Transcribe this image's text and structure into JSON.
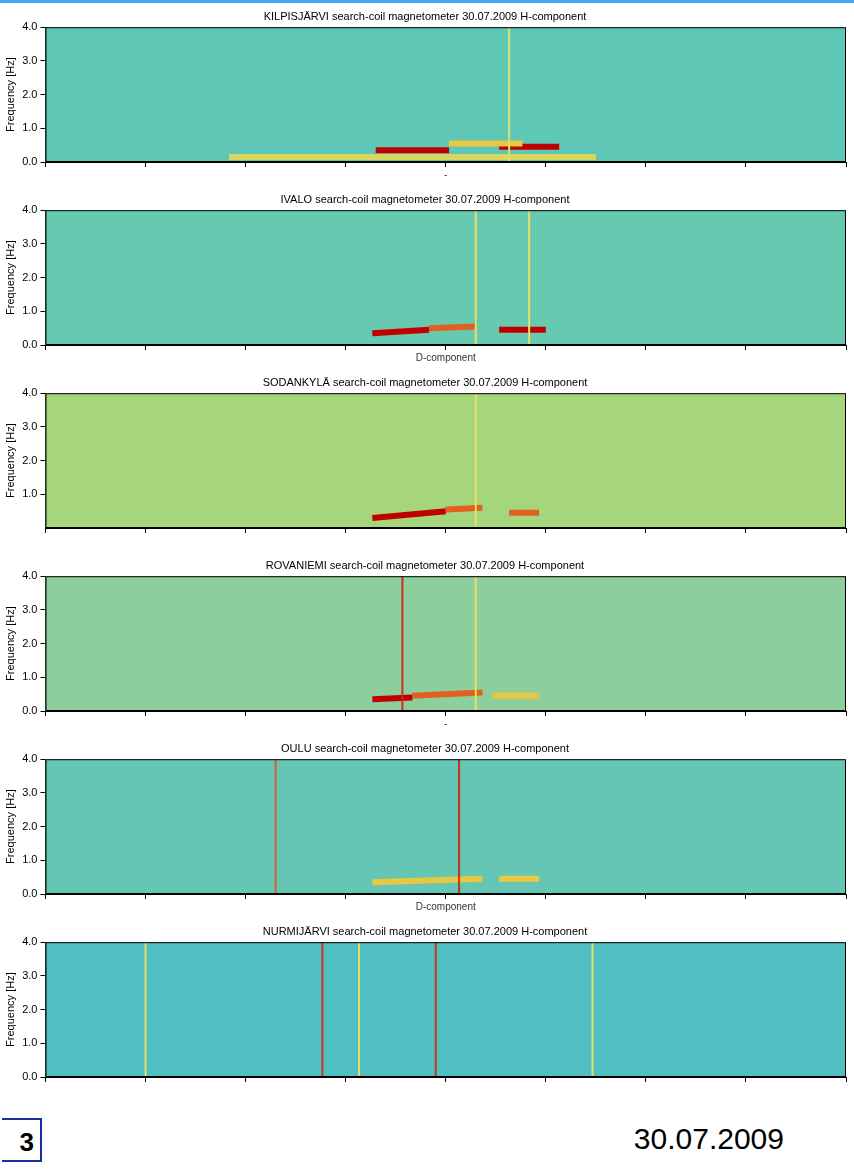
{
  "chart_data": [
    {
      "type": "line",
      "title": "KILPISJÄRVI search-coil magnetometer 30.07.2009 H-component",
      "y_label": "Frequency [Hz]",
      "xlim": [
        0,
        24
      ],
      "xticks": [
        0,
        3,
        6,
        9,
        12,
        15,
        18,
        21,
        24
      ],
      "ylim": [
        0,
        4
      ],
      "yticks": [
        {
          "value": 0,
          "label": "0.0"
        },
        {
          "value": 1,
          "label": "1.0"
        },
        {
          "value": 2,
          "label": "2.0"
        },
        {
          "value": 3,
          "label": "3.0"
        },
        {
          "value": 4,
          "label": "4.0"
        }
      ],
      "tick_labels": "y",
      "footnote": "-",
      "bands": [
        {
          "color": "#c00000",
          "x": [
            9.9,
            12.1
          ],
          "values": [
            0.35,
            0.35
          ]
        },
        {
          "color": "#e8c840",
          "x": [
            12.1,
            14.3
          ],
          "values": [
            0.55,
            0.55
          ]
        },
        {
          "color": "#c00000",
          "x": [
            13.6,
            15.4
          ],
          "values": [
            0.45,
            0.45
          ]
        },
        {
          "color": "#d8d860",
          "x": [
            5.5,
            16.5
          ],
          "values": [
            0.15,
            0.15
          ]
        }
      ],
      "spikes": [
        {
          "color": "#d8e070",
          "x": [
            13.9,
            13.9
          ],
          "values": [
            0,
            4
          ]
        }
      ]
    },
    {
      "type": "line",
      "title": "IVALO search-coil magnetometer 30.07.2009 H-component",
      "y_label": "Frequency [Hz]",
      "xlim": [
        0,
        24
      ],
      "xticks": [
        0,
        3,
        6,
        9,
        12,
        15,
        18,
        21,
        24
      ],
      "ylim": [
        0,
        4
      ],
      "yticks": [
        {
          "value": 0,
          "label": "0.0"
        },
        {
          "value": 1,
          "label": "1.0"
        },
        {
          "value": 2,
          "label": "2.0"
        },
        {
          "value": 3,
          "label": "3.0"
        },
        {
          "value": 4,
          "label": "4.0"
        }
      ],
      "tick_labels": "y",
      "footnote": "D-component",
      "bands": [
        {
          "color": "#c00000",
          "x": [
            9.8,
            11.5
          ],
          "values": [
            0.35,
            0.45
          ]
        },
        {
          "color": "#e06020",
          "x": [
            11.5,
            12.9
          ],
          "values": [
            0.5,
            0.55
          ]
        },
        {
          "color": "#c00000",
          "x": [
            13.6,
            15.0
          ],
          "values": [
            0.45,
            0.45
          ]
        }
      ],
      "spikes": [
        {
          "color": "#e8e060",
          "x": [
            12.9,
            12.9
          ],
          "values": [
            0,
            4
          ]
        },
        {
          "color": "#e8e060",
          "x": [
            14.5,
            14.5
          ],
          "values": [
            0,
            4
          ]
        }
      ]
    },
    {
      "type": "line",
      "title": "SODANKYLÄ search-coil magnetometer 30.07.2009 H-component",
      "y_label": "Frequency [Hz]",
      "xlim": [
        0,
        24
      ],
      "xticks": [
        0,
        3,
        6,
        9,
        12,
        15,
        18,
        21,
        24
      ],
      "ylim": [
        0,
        4
      ],
      "yticks": [
        {
          "value": 1,
          "label": "1.0"
        },
        {
          "value": 2,
          "label": "2.0"
        },
        {
          "value": 3,
          "label": "3.0"
        },
        {
          "value": 4,
          "label": "4.0"
        }
      ],
      "tick_labels": "y",
      "bands": [
        {
          "color": "#c00000",
          "x": [
            9.8,
            12.0
          ],
          "values": [
            0.3,
            0.5
          ]
        },
        {
          "color": "#e06020",
          "x": [
            12.0,
            13.1
          ],
          "values": [
            0.55,
            0.6
          ]
        },
        {
          "color": "#e06020",
          "x": [
            13.9,
            14.8
          ],
          "values": [
            0.45,
            0.45
          ]
        }
      ],
      "spikes": [
        {
          "color": "#e8e060",
          "x": [
            12.9,
            12.9
          ],
          "values": [
            0,
            4
          ]
        }
      ]
    },
    {
      "type": "line",
      "title": "ROVANIEMI search-coil magnetometer 30.07.2009 H-component",
      "y_label": "Frequency [Hz]",
      "xlim": [
        0,
        24
      ],
      "xticks": [
        0,
        3,
        6,
        9,
        12,
        15,
        18,
        21,
        24
      ],
      "ylim": [
        0,
        4
      ],
      "yticks": [
        {
          "value": 0,
          "label": "0.0"
        },
        {
          "value": 1,
          "label": "1.0"
        },
        {
          "value": 2,
          "label": "2.0"
        },
        {
          "value": 3,
          "label": "3.0"
        },
        {
          "value": 4,
          "label": "4.0"
        }
      ],
      "tick_labels": "y",
      "footnote": "-",
      "bands": [
        {
          "color": "#c00000",
          "x": [
            9.8,
            11.0
          ],
          "values": [
            0.35,
            0.4
          ]
        },
        {
          "color": "#e06020",
          "x": [
            11.0,
            13.1
          ],
          "values": [
            0.45,
            0.55
          ]
        },
        {
          "color": "#e8c840",
          "x": [
            13.4,
            14.8
          ],
          "values": [
            0.45,
            0.45
          ]
        }
      ],
      "spikes": [
        {
          "color": "#c83020",
          "x": [
            10.7,
            10.7
          ],
          "values": [
            0,
            4
          ]
        },
        {
          "color": "#e8e060",
          "x": [
            12.9,
            12.9
          ],
          "values": [
            0,
            4
          ]
        }
      ]
    },
    {
      "type": "line",
      "title": "OULU search-coil magnetometer 30.07.2009 H-component",
      "y_label": "Frequency [Hz]",
      "xlim": [
        0,
        24
      ],
      "xticks": [
        0,
        3,
        6,
        9,
        12,
        15,
        18,
        21,
        24
      ],
      "ylim": [
        0,
        4
      ],
      "yticks": [
        {
          "value": 0,
          "label": "0.0"
        },
        {
          "value": 1,
          "label": "1.0"
        },
        {
          "value": 2,
          "label": "2.0"
        },
        {
          "value": 3,
          "label": "3.0"
        },
        {
          "value": 4,
          "label": "4.0"
        }
      ],
      "tick_labels": "y",
      "footnote": "D-component",
      "bands": [
        {
          "color": "#e8c840",
          "x": [
            9.8,
            13.1
          ],
          "values": [
            0.35,
            0.45
          ]
        },
        {
          "color": "#e8c840",
          "x": [
            13.6,
            14.8
          ],
          "values": [
            0.45,
            0.45
          ]
        }
      ],
      "spikes": [
        {
          "color": "#d86030",
          "x": [
            6.9,
            6.9
          ],
          "values": [
            0,
            4
          ]
        },
        {
          "color": "#c83020",
          "x": [
            12.4,
            12.4
          ],
          "values": [
            0,
            4
          ]
        }
      ]
    },
    {
      "type": "line",
      "title": "NURMIJÄRVI search-coil magnetometer 30.07.2009 H-component",
      "y_label": "Frequency [Hz]",
      "xlim": [
        0,
        24
      ],
      "xticks": [
        0,
        3,
        6,
        9,
        12,
        15,
        18,
        21,
        24
      ],
      "ylim": [
        0,
        4
      ],
      "yticks": [
        {
          "value": 0,
          "label": "0.0"
        },
        {
          "value": 1,
          "label": "1.0"
        },
        {
          "value": 2,
          "label": "2.0"
        },
        {
          "value": 3,
          "label": "3.0"
        },
        {
          "value": 4,
          "label": "4.0"
        }
      ],
      "tick_labels": "y",
      "bands": [],
      "spikes": [
        {
          "color": "#e8e060",
          "x": [
            3.0,
            3.0
          ],
          "values": [
            0,
            4
          ]
        },
        {
          "color": "#c83020",
          "x": [
            8.3,
            8.3
          ],
          "values": [
            0,
            4
          ]
        },
        {
          "color": "#e8e060",
          "x": [
            9.4,
            9.4
          ],
          "values": [
            0,
            4
          ]
        },
        {
          "color": "#c83020",
          "x": [
            11.7,
            11.7
          ],
          "values": [
            0,
            4
          ]
        },
        {
          "color": "#e8e060",
          "x": [
            16.4,
            16.4
          ],
          "values": [
            0,
            4
          ]
        }
      ]
    }
  ],
  "footer": {
    "page": "3",
    "date": "30.07.2009"
  }
}
